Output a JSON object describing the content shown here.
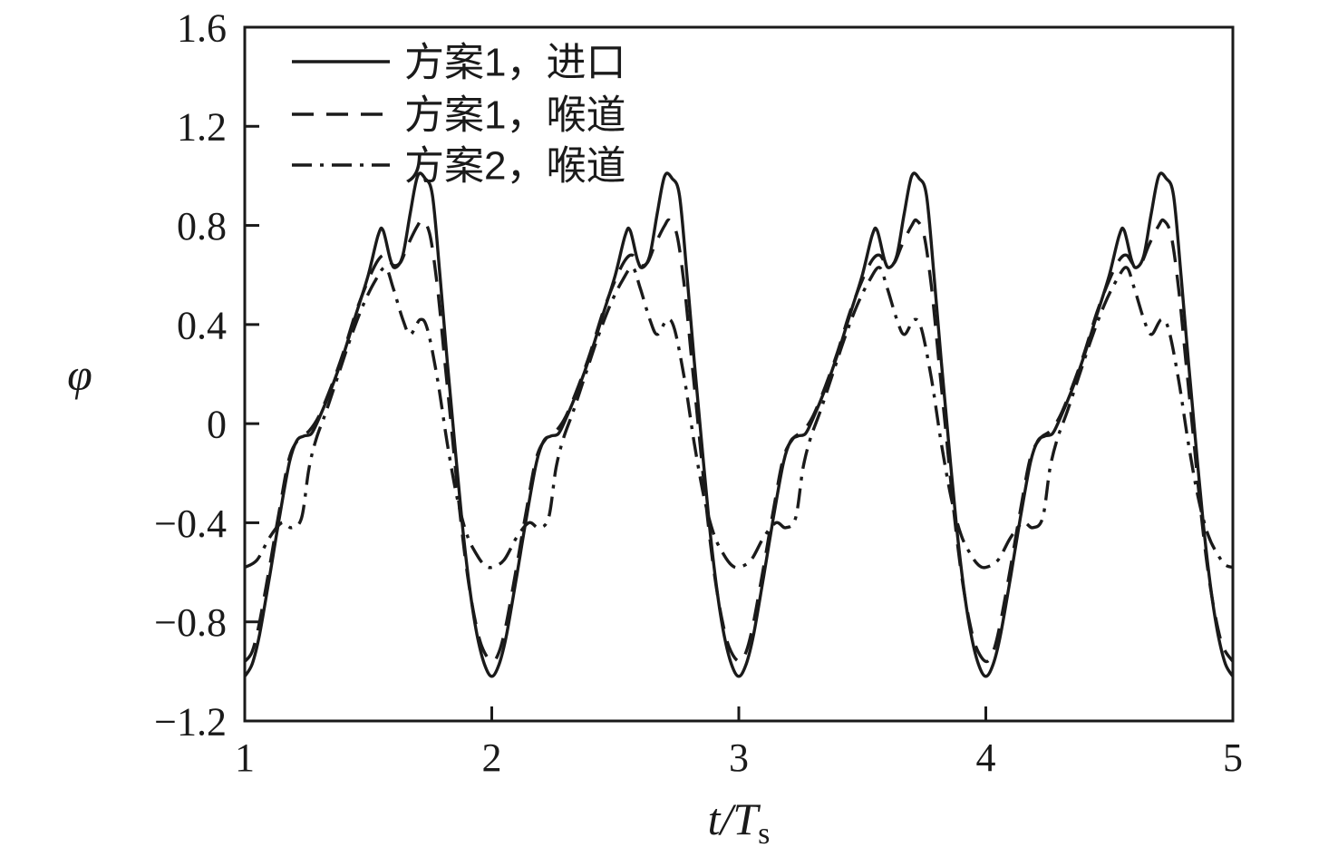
{
  "figure": {
    "background": "#ffffff",
    "ink_color": "#1a1a1a"
  },
  "chart_data": {
    "type": "line",
    "title": "",
    "xlabel": "t/T_s",
    "xlabel_parts": {
      "main": "t/T",
      "subscript": "s"
    },
    "ylabel": "φ",
    "xlim": [
      1,
      5
    ],
    "ylim": [
      -1.2,
      1.6
    ],
    "x_ticks": [
      1,
      2,
      3,
      4,
      5
    ],
    "x_tick_labels": [
      "1",
      "2",
      "3",
      "4",
      "5"
    ],
    "y_ticks": [
      -1.2,
      -0.8,
      -0.4,
      0,
      0.4,
      0.8,
      1.2,
      1.6
    ],
    "y_tick_labels": [
      "−1.2",
      "−0.8",
      "−0.4",
      "0",
      "0.4",
      "0.8",
      "1.2",
      "1.6"
    ],
    "grid": false,
    "legend_position": "top-left-inside",
    "period_start": 1,
    "periods": 4,
    "series": [
      {
        "name": "方案1，进口",
        "style": "solid",
        "dash": null,
        "period_profile": [
          [
            0.0,
            -1.02
          ],
          [
            0.03,
            -0.97
          ],
          [
            0.06,
            -0.85
          ],
          [
            0.1,
            -0.62
          ],
          [
            0.14,
            -0.38
          ],
          [
            0.18,
            -0.16
          ],
          [
            0.21,
            -0.07
          ],
          [
            0.24,
            -0.05
          ],
          [
            0.27,
            -0.04
          ],
          [
            0.3,
            0.02
          ],
          [
            0.35,
            0.14
          ],
          [
            0.4,
            0.28
          ],
          [
            0.45,
            0.44
          ],
          [
            0.5,
            0.6
          ],
          [
            0.54,
            0.76
          ],
          [
            0.56,
            0.78
          ],
          [
            0.59,
            0.66
          ],
          [
            0.61,
            0.63
          ],
          [
            0.64,
            0.68
          ],
          [
            0.67,
            0.85
          ],
          [
            0.7,
            1.0
          ],
          [
            0.73,
            0.99
          ],
          [
            0.76,
            0.92
          ],
          [
            0.79,
            0.6
          ],
          [
            0.82,
            0.25
          ],
          [
            0.85,
            -0.08
          ],
          [
            0.88,
            -0.4
          ],
          [
            0.91,
            -0.66
          ],
          [
            0.94,
            -0.85
          ],
          [
            0.97,
            -0.97
          ]
        ]
      },
      {
        "name": "方案1，喉道",
        "style": "dashed",
        "dash": [
          24,
          14
        ],
        "period_profile": [
          [
            0.0,
            -0.96
          ],
          [
            0.03,
            -0.92
          ],
          [
            0.06,
            -0.8
          ],
          [
            0.1,
            -0.58
          ],
          [
            0.14,
            -0.35
          ],
          [
            0.18,
            -0.14
          ],
          [
            0.22,
            -0.06
          ],
          [
            0.26,
            -0.03
          ],
          [
            0.3,
            0.03
          ],
          [
            0.35,
            0.15
          ],
          [
            0.4,
            0.29
          ],
          [
            0.45,
            0.45
          ],
          [
            0.5,
            0.58
          ],
          [
            0.54,
            0.66
          ],
          [
            0.57,
            0.68
          ],
          [
            0.6,
            0.64
          ],
          [
            0.63,
            0.65
          ],
          [
            0.66,
            0.72
          ],
          [
            0.7,
            0.8
          ],
          [
            0.72,
            0.82
          ],
          [
            0.75,
            0.76
          ],
          [
            0.78,
            0.55
          ],
          [
            0.81,
            0.25
          ],
          [
            0.84,
            -0.05
          ],
          [
            0.87,
            -0.35
          ],
          [
            0.9,
            -0.6
          ],
          [
            0.93,
            -0.78
          ],
          [
            0.96,
            -0.9
          ]
        ]
      },
      {
        "name": "方案2，喉道",
        "style": "dash-dot",
        "dash": [
          22,
          9,
          4,
          9
        ],
        "period_profile": [
          [
            0.0,
            -0.58
          ],
          [
            0.05,
            -0.55
          ],
          [
            0.1,
            -0.46
          ],
          [
            0.15,
            -0.4
          ],
          [
            0.19,
            -0.42
          ],
          [
            0.23,
            -0.38
          ],
          [
            0.26,
            -0.18
          ],
          [
            0.29,
            -0.06
          ],
          [
            0.33,
            0.05
          ],
          [
            0.38,
            0.2
          ],
          [
            0.43,
            0.35
          ],
          [
            0.48,
            0.48
          ],
          [
            0.53,
            0.58
          ],
          [
            0.57,
            0.63
          ],
          [
            0.6,
            0.55
          ],
          [
            0.64,
            0.42
          ],
          [
            0.67,
            0.36
          ],
          [
            0.71,
            0.42
          ],
          [
            0.74,
            0.38
          ],
          [
            0.78,
            0.18
          ],
          [
            0.82,
            -0.08
          ],
          [
            0.86,
            -0.3
          ],
          [
            0.9,
            -0.45
          ],
          [
            0.94,
            -0.53
          ],
          [
            0.97,
            -0.57
          ]
        ]
      }
    ]
  },
  "layout_hints": {
    "legend_rows": [
      "方案1，进口",
      "方案1，喉道",
      "方案2，喉道"
    ]
  }
}
